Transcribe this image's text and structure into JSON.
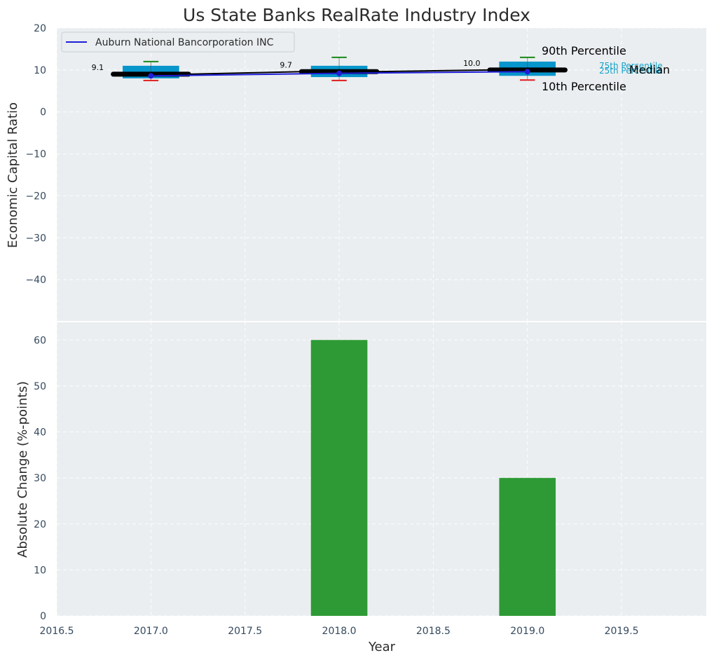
{
  "chart_data": {
    "type": "box",
    "title": "Us State Banks RealRate Industry Index",
    "top_panel": {
      "ylabel": "Economic Capital Ratio",
      "ylim": [
        -50,
        20
      ],
      "yticks": [
        20,
        10,
        0,
        -10,
        -20,
        -30,
        -40
      ],
      "legend": {
        "label": "Auburn National Bancorporation INC",
        "color": "#1f1fd6",
        "placement": "top-left"
      },
      "boxes": [
        {
          "x": 2017,
          "p10": 7.5,
          "p25": 8.0,
          "median": 9.0,
          "p75": 11.0,
          "p90": 12.0,
          "company": 8.6,
          "label": "9.1"
        },
        {
          "x": 2018,
          "p10": 7.5,
          "p25": 8.3,
          "median": 9.6,
          "p75": 11.0,
          "p90": 13.0,
          "company": 9.2,
          "label": "9.7"
        },
        {
          "x": 2019,
          "p10": 7.6,
          "p25": 8.6,
          "median": 10.0,
          "p75": 12.0,
          "p90": 13.0,
          "company": 9.6,
          "label": "10.0"
        }
      ],
      "annotations": {
        "p90": "90th Percentile",
        "p75": "75th Percentile",
        "median": "Median",
        "p25": "25th Percentile",
        "p10": "10th Percentile"
      }
    },
    "bottom_panel": {
      "type": "bar",
      "ylabel": "Absolute Change (%-points)",
      "xlabel": "Year",
      "ylim": [
        0,
        64
      ],
      "yticks": [
        0,
        10,
        20,
        30,
        40,
        50,
        60
      ],
      "bars": [
        {
          "x": 2018,
          "value": 60
        },
        {
          "x": 2019,
          "value": 30
        }
      ],
      "bar_color": "#2e9a35"
    },
    "xlim": [
      2016.5,
      2019.95
    ],
    "xticks": [
      "2016.5",
      "2017.0",
      "2017.5",
      "2018.0",
      "2018.5",
      "2019.0",
      "2019.5"
    ],
    "grid": true,
    "colors": {
      "background": "#eaeef0",
      "box": "#0796cc",
      "median": "#000000",
      "company_line": "#1f1fd6",
      "whisker_top": "#1a8a1a",
      "whisker_bottom": "#e01b1b"
    }
  }
}
